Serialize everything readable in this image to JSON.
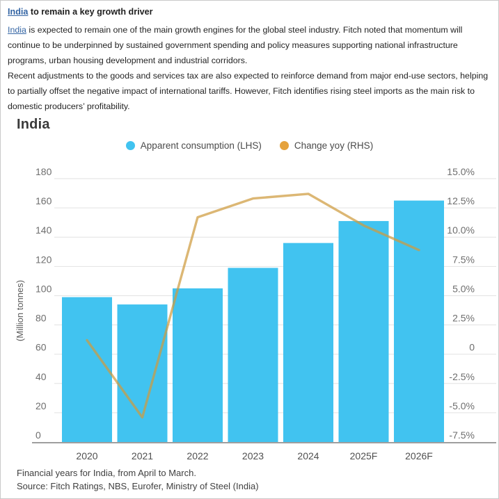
{
  "article": {
    "heading": {
      "link": "India",
      "rest": " to remain a key growth driver"
    },
    "paragraphs": [
      {
        "link": "India",
        "rest": " is expected to remain one of the main growth engines for the global steel industry. Fitch noted that momentum will continue to be underpinned by sustained government spending and policy measures supporting national infrastructure programs, urban housing development and industrial corridors."
      },
      {
        "text": "Recent adjustments to the goods and services tax are also expected to reinforce demand from major end-use sectors, helping to partially offset the negative impact of international tariffs. However, Fitch identifies rising steel imports as the main risk to domestic producers’ profitability."
      }
    ]
  },
  "chart": {
    "title": "India",
    "legend": [
      {
        "label": "Apparent consumption (LHS)",
        "color": "#41c3f0"
      },
      {
        "label": "Change yoy (RHS)",
        "color": "#e5a23c"
      }
    ],
    "footnotes": [
      "Financial years for India, from April to March.",
      "Source: Fitch Ratings, NBS, Eurofer, Ministry of Steel (India)"
    ]
  },
  "chart_data": {
    "type": "bar",
    "subtype": "bar+line combo, dual axis",
    "title": "India",
    "categories": [
      "2020",
      "2021",
      "2022",
      "2023",
      "2024",
      "2025F",
      "2026F"
    ],
    "series": [
      {
        "name": "Apparent consumption (LHS)",
        "type": "bar",
        "axis": "left",
        "color": "#41c3f0",
        "values": [
          99,
          94,
          105,
          119,
          136,
          151,
          165
        ]
      },
      {
        "name": "Change yoy (RHS)",
        "type": "line",
        "axis": "right",
        "color": "#cf9b3f",
        "opacity": 0.72,
        "values": [
          1.2,
          -5.4,
          11.7,
          13.3,
          13.7,
          11.0,
          8.9
        ]
      }
    ],
    "left_axis": {
      "label": "(Million tonnes)",
      "min": 0,
      "max": 180,
      "ticks": [
        180,
        160,
        140,
        120,
        100,
        80,
        60,
        40,
        20,
        0
      ]
    },
    "right_axis": {
      "min": -7.5,
      "max": 15,
      "ticks": [
        {
          "value": 15,
          "label": "15.0%"
        },
        {
          "value": 12.5,
          "label": "12.5%"
        },
        {
          "value": 10,
          "label": "10.0%"
        },
        {
          "value": 7.5,
          "label": "7.5%"
        },
        {
          "value": 5,
          "label": "5.0%"
        },
        {
          "value": 2.5,
          "label": "2.5%"
        },
        {
          "value": 0,
          "label": "0"
        },
        {
          "value": -2.5,
          "label": "-2.5%"
        },
        {
          "value": -5,
          "label": "-5.0%"
        },
        {
          "value": -7.5,
          "label": "-7.5%"
        }
      ]
    },
    "grid": true,
    "legend_position": "top"
  },
  "colors": {
    "bar": "#41c3f0",
    "line": "#cf9b3f",
    "gridline": "#e2e2e2",
    "axis_line": "#9e9e9e",
    "tick_text": "#6e6e6e",
    "x_tick_text": "#4f4f4f",
    "link": "#3465a4"
  }
}
